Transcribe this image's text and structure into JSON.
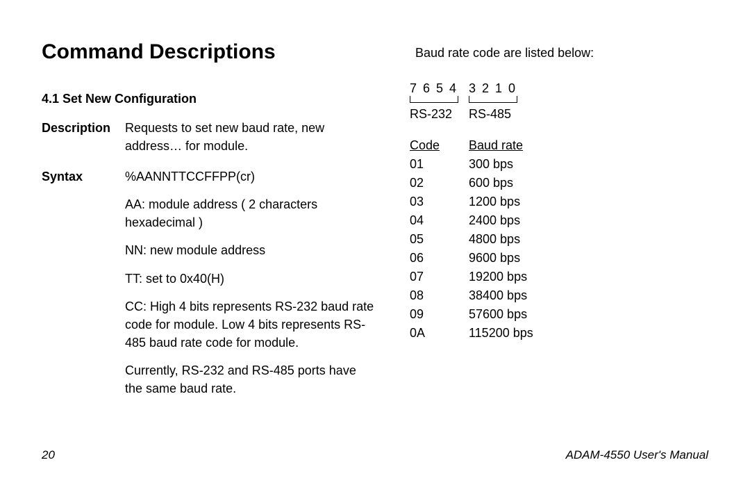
{
  "title": "Command Descriptions",
  "section": {
    "heading": "4.1 Set New Configuration",
    "desc_label": "Description",
    "desc_text": "Requests to set new baud rate, new address… for module.",
    "syntax_label": "Syntax",
    "syntax_cmd": "%AANNTTCCFFPP(cr)",
    "p_aa": "AA:   module address ( 2 characters hexadecimal )",
    "p_nn": "NN:   new module address",
    "p_tt": "TT:   set to 0x40(H)",
    "p_cc": "CC:   High 4 bits represents RS-232 baud rate code for module. Low 4 bits represents RS-485 baud rate code for module.",
    "p_note": "Currently, RS-232 and RS-485 ports have the same baud rate."
  },
  "right": {
    "intro": "Baud rate code are listed below:",
    "bits_high": "7 6 5 4",
    "bits_low": "3 2 1 0",
    "rs232": "RS-232",
    "rs485": "RS-485",
    "head_code": "Code",
    "head_rate": "Baud rate",
    "rows": [
      {
        "c": "01",
        "r": "300 bps"
      },
      {
        "c": "02",
        "r": "600 bps"
      },
      {
        "c": "03",
        "r": "1200 bps"
      },
      {
        "c": "04",
        "r": "2400 bps"
      },
      {
        "c": "05",
        "r": "4800 bps"
      },
      {
        "c": "06",
        "r": "9600 bps"
      },
      {
        "c": "07",
        "r": "19200 bps"
      },
      {
        "c": "08",
        "r": "38400 bps"
      },
      {
        "c": "09",
        "r": "57600 bps"
      },
      {
        "c": "0A",
        "r": "115200 bps"
      }
    ]
  },
  "footer": {
    "page": "20",
    "manual": "ADAM-4550 User's Manual"
  }
}
